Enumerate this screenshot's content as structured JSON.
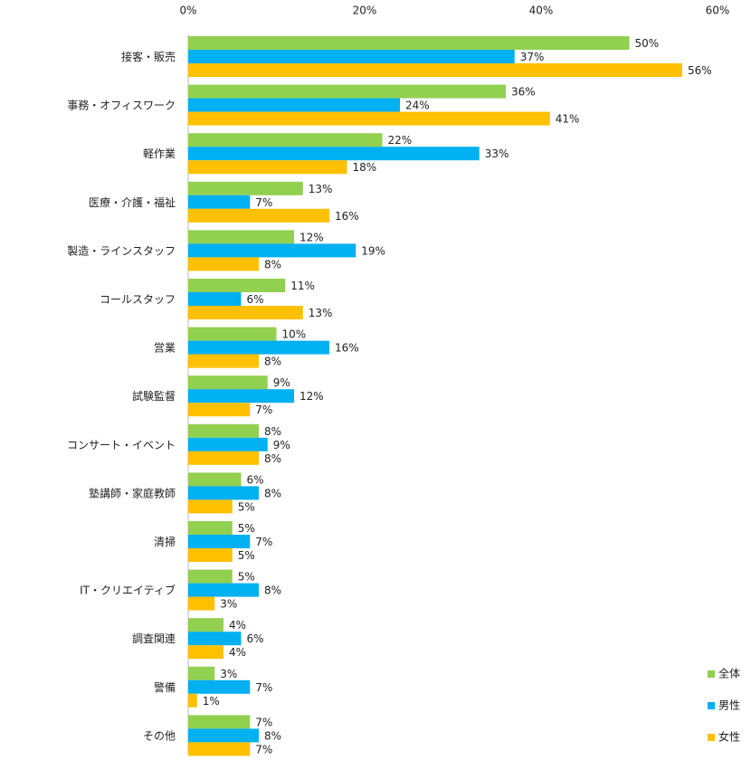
{
  "chart_data": {
    "type": "bar",
    "orientation": "horizontal",
    "categories": [
      "接客・販売",
      "事務・オフィスワーク",
      "軽作業",
      "医療・介護・福祉",
      "製造・ラインスタッフ",
      "コールスタッフ",
      "営業",
      "試験監督",
      "コンサート・イベント",
      "塾講師・家庭教師",
      "清掃",
      "IT・クリエイティブ",
      "調査関連",
      "警備",
      "その他"
    ],
    "series": [
      {
        "name": "全体",
        "color": "#92d050",
        "values": [
          50,
          36,
          22,
          13,
          12,
          11,
          10,
          9,
          8,
          6,
          5,
          5,
          4,
          3,
          7
        ],
        "value_labels": [
          "50%",
          "36%",
          "22%",
          "13%",
          "12%",
          "11%",
          "10%",
          "9%",
          "8%",
          "6%",
          "5%",
          "5%",
          "4%",
          "3%",
          "7%"
        ]
      },
      {
        "name": "男性",
        "color": "#00b0f0",
        "values": [
          37,
          24,
          33,
          7,
          19,
          6,
          16,
          12,
          9,
          8,
          7,
          8,
          6,
          7,
          8
        ],
        "value_labels": [
          "37%",
          "24%",
          "33%",
          "7%",
          "19%",
          "6%",
          "16%",
          "12%",
          "9%",
          "8%",
          "7%",
          "8%",
          "6%",
          "7%",
          "8%"
        ]
      },
      {
        "name": "女性",
        "color": "#ffc000",
        "values": [
          56,
          41,
          18,
          16,
          8,
          13,
          8,
          7,
          8,
          5,
          5,
          3,
          4,
          1,
          7
        ],
        "value_labels": [
          "56%",
          "41%",
          "18%",
          "16%",
          "8%",
          "13%",
          "8%",
          "7%",
          "8%",
          "5%",
          "5%",
          "3%",
          "4%",
          "1%",
          "7%"
        ]
      }
    ],
    "xlim": [
      0,
      60
    ],
    "xticks": [
      {
        "value": 0,
        "label": "0%"
      },
      {
        "value": 20,
        "label": "20%"
      },
      {
        "value": 40,
        "label": "40%"
      },
      {
        "value": 60,
        "label": "60%"
      }
    ],
    "grid": false,
    "legend": "bottom-right"
  }
}
